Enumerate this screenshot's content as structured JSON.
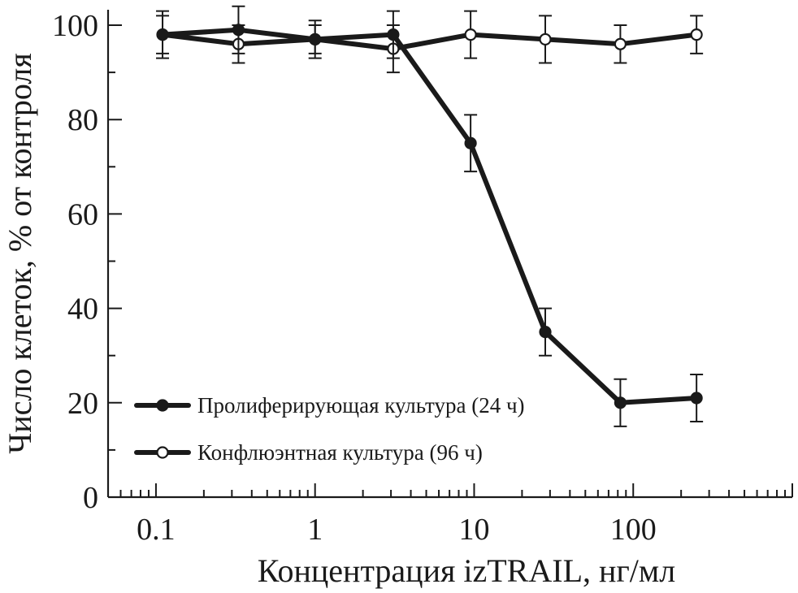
{
  "chart_data": {
    "type": "line",
    "xlabel": "Концентрация izTRAIL, нг/мл",
    "ylabel": "Число клеток, % от контроля",
    "x_scale": "log",
    "xlim": [
      0.05,
      1000
    ],
    "ylim": [
      0,
      100
    ],
    "x_ticks": [
      0.1,
      1,
      10,
      100
    ],
    "x_tick_labels": [
      "0.1",
      "1",
      "10",
      "100"
    ],
    "y_ticks": [
      0,
      20,
      40,
      60,
      80,
      100
    ],
    "y_tick_labels": [
      "0",
      "20",
      "40",
      "60",
      "80",
      "100"
    ],
    "legend_position": "lower-left",
    "grid": false,
    "series": [
      {
        "name": "Пролиферирующая культура (24 ч)",
        "marker": "filled-circle",
        "color": "#1a1a1a",
        "x": [
          0.11,
          0.33,
          1.0,
          3.1,
          9.5,
          28,
          83,
          250
        ],
        "y": [
          98,
          99,
          97,
          98,
          75,
          35,
          20,
          21
        ],
        "err": [
          4,
          5,
          4,
          5,
          6,
          5,
          5,
          5
        ]
      },
      {
        "name": "Конфлюэнтная культура (96 ч)",
        "marker": "open-circle",
        "color": "#1a1a1a",
        "x": [
          0.11,
          0.33,
          1.0,
          3.1,
          9.5,
          28,
          83,
          250
        ],
        "y": [
          98,
          96,
          97,
          95,
          98,
          97,
          96,
          98
        ],
        "err": [
          5,
          4,
          3,
          5,
          5,
          5,
          4,
          4
        ]
      }
    ]
  }
}
